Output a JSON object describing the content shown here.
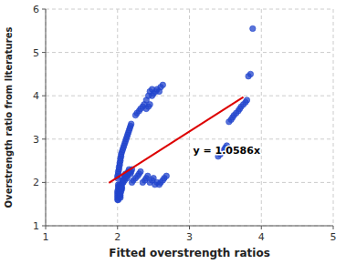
{
  "chart_data": {
    "type": "scatter",
    "x_label": "Fitted overstrength ratios",
    "y_label": "Overstrength ratio from literatures",
    "series": [
      {
        "type": "scatter",
        "color": "#2244cc",
        "marker": "circle",
        "x": [
          2.0,
          2.0,
          2.0,
          2.0,
          2.0,
          2.01,
          2.01,
          2.01,
          2.01,
          2.02,
          2.02,
          2.02,
          2.02,
          2.03,
          2.03,
          2.03,
          2.04,
          2.04,
          2.04,
          2.05,
          2.05,
          2.05,
          2.05,
          2.06,
          2.06,
          2.07,
          2.07,
          2.08,
          2.08,
          2.09,
          2.1,
          2.1,
          2.1,
          2.11,
          2.12,
          2.13,
          2.14,
          2.15,
          2.15,
          2.16,
          2.17,
          2.18,
          2.19,
          2.2,
          2.0,
          2.0,
          2.01,
          2.01,
          2.02,
          2.02,
          2.03,
          2.03,
          2.04,
          2.04,
          2.05,
          2.05,
          2.06,
          2.07,
          2.08,
          2.09,
          2.1,
          2.11,
          2.12,
          2.13,
          2.14,
          2.15,
          2.16,
          2.17,
          2.18,
          2.19,
          2.2,
          2.22,
          2.25,
          2.28,
          2.3,
          2.32,
          2.35,
          2.38,
          2.4,
          2.42,
          2.45,
          2.48,
          2.5,
          2.52,
          2.55,
          2.58,
          2.6,
          2.63,
          2.65,
          2.68,
          2.4,
          2.43,
          2.45,
          2.48,
          2.5,
          2.53,
          2.55,
          2.58,
          2.6,
          2.63,
          2.25,
          2.27,
          2.3,
          2.32,
          2.35,
          2.37,
          2.4,
          2.43,
          2.45,
          2.48,
          3.4,
          3.43,
          3.45,
          3.48,
          3.5,
          3.52,
          3.55,
          3.58,
          3.6,
          3.62,
          3.65,
          3.68,
          3.7,
          3.72,
          3.75,
          3.78,
          3.8,
          3.82,
          3.85,
          3.88
        ],
        "values": [
          1.6,
          1.65,
          1.7,
          1.75,
          1.8,
          1.85,
          1.9,
          1.95,
          1.6,
          1.65,
          1.7,
          1.75,
          1.8,
          1.85,
          1.9,
          1.95,
          1.65,
          1.7,
          1.75,
          1.8,
          1.85,
          1.9,
          1.95,
          1.85,
          1.9,
          2.0,
          2.05,
          2.0,
          2.05,
          2.1,
          2.05,
          2.1,
          2.15,
          2.2,
          2.15,
          2.1,
          2.15,
          2.2,
          2.25,
          2.3,
          2.25,
          2.2,
          2.25,
          2.3,
          2.1,
          2.15,
          2.2,
          2.25,
          2.3,
          2.35,
          2.4,
          2.45,
          2.5,
          2.55,
          2.6,
          2.65,
          2.7,
          2.75,
          2.8,
          2.85,
          2.9,
          2.95,
          3.0,
          3.05,
          3.1,
          3.15,
          3.2,
          3.25,
          3.3,
          3.35,
          2.0,
          2.05,
          2.1,
          2.15,
          2.2,
          2.25,
          2.0,
          2.05,
          2.1,
          2.15,
          2.0,
          2.05,
          2.1,
          1.95,
          2.0,
          1.95,
          2.0,
          2.05,
          2.1,
          2.15,
          3.7,
          3.75,
          3.8,
          4.0,
          4.05,
          4.1,
          4.15,
          4.1,
          4.2,
          4.25,
          3.55,
          3.6,
          3.65,
          3.7,
          3.75,
          3.8,
          3.9,
          4.0,
          4.1,
          4.15,
          2.6,
          2.65,
          2.7,
          2.75,
          2.8,
          2.85,
          3.4,
          3.45,
          3.5,
          3.55,
          3.6,
          3.65,
          3.7,
          3.75,
          3.8,
          3.85,
          3.9,
          4.45,
          4.5,
          5.55
        ]
      },
      {
        "type": "line",
        "color": "#dd0000",
        "line_style": "solid",
        "x": [
          1.88,
          3.75
        ],
        "values": [
          1.990168,
          3.96975
        ]
      }
    ],
    "annotations": [
      {
        "text": "y = 1.0586x",
        "x": 3.05,
        "y": 2.65
      }
    ],
    "xlim": [
      1,
      5
    ],
    "ylim": [
      1,
      6
    ],
    "xticks": [
      1,
      2,
      3,
      4,
      5
    ],
    "yticks": [
      1,
      2,
      3,
      4,
      5,
      6
    ],
    "grid": true
  }
}
